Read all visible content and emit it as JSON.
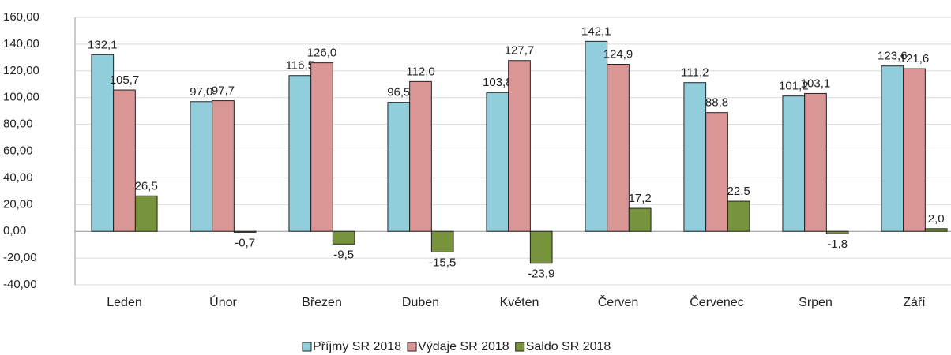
{
  "chart_data": {
    "type": "bar",
    "categories": [
      "Leden",
      "Únor",
      "Březen",
      "Duben",
      "Květen",
      "Červen",
      "Červenec",
      "Srpen",
      "Září"
    ],
    "series": [
      {
        "name": "Příjmy SR 2018",
        "color": "#92cddc",
        "values": [
          132.1,
          97.0,
          116.5,
          96.5,
          103.8,
          142.1,
          111.2,
          101.2,
          123.6
        ],
        "value_labels": [
          "132,1",
          "97,0",
          "116,5",
          "96,5",
          "103,8",
          "142,1",
          "111,2",
          "101,2",
          "123,6"
        ]
      },
      {
        "name": "Výdaje SR 2018",
        "color": "#d99694",
        "values": [
          105.7,
          97.7,
          126.0,
          112.0,
          127.7,
          124.9,
          88.8,
          103.1,
          121.6
        ],
        "value_labels": [
          "105,7",
          "97,7",
          "126,0",
          "112,0",
          "127,7",
          "124,9",
          "88,8",
          "103,1",
          "121,6"
        ]
      },
      {
        "name": "Saldo SR 2018",
        "color": "#77933c",
        "values": [
          26.5,
          -0.7,
          -9.5,
          -15.5,
          -23.9,
          17.2,
          22.5,
          -1.8,
          2.0
        ],
        "value_labels": [
          "26,5",
          "-0,7",
          "-9,5",
          "-15,5",
          "-23,9",
          "17,2",
          "22,5",
          "-1,8",
          "2,0"
        ]
      }
    ],
    "ylim": [
      -40,
      160
    ],
    "yticks": [
      {
        "value": -40,
        "label": "-40,00"
      },
      {
        "value": -20,
        "label": "-20,00"
      },
      {
        "value": 0,
        "label": "0,00"
      },
      {
        "value": 20,
        "label": "20,00"
      },
      {
        "value": 40,
        "label": "40,00"
      },
      {
        "value": 60,
        "label": "60,00"
      },
      {
        "value": 80,
        "label": "80,00"
      },
      {
        "value": 100,
        "label": "100,00"
      },
      {
        "value": 120,
        "label": "120,00"
      },
      {
        "value": 140,
        "label": "140,00"
      },
      {
        "value": 160,
        "label": "160,00"
      }
    ],
    "grid": true,
    "legend": "bottom"
  }
}
